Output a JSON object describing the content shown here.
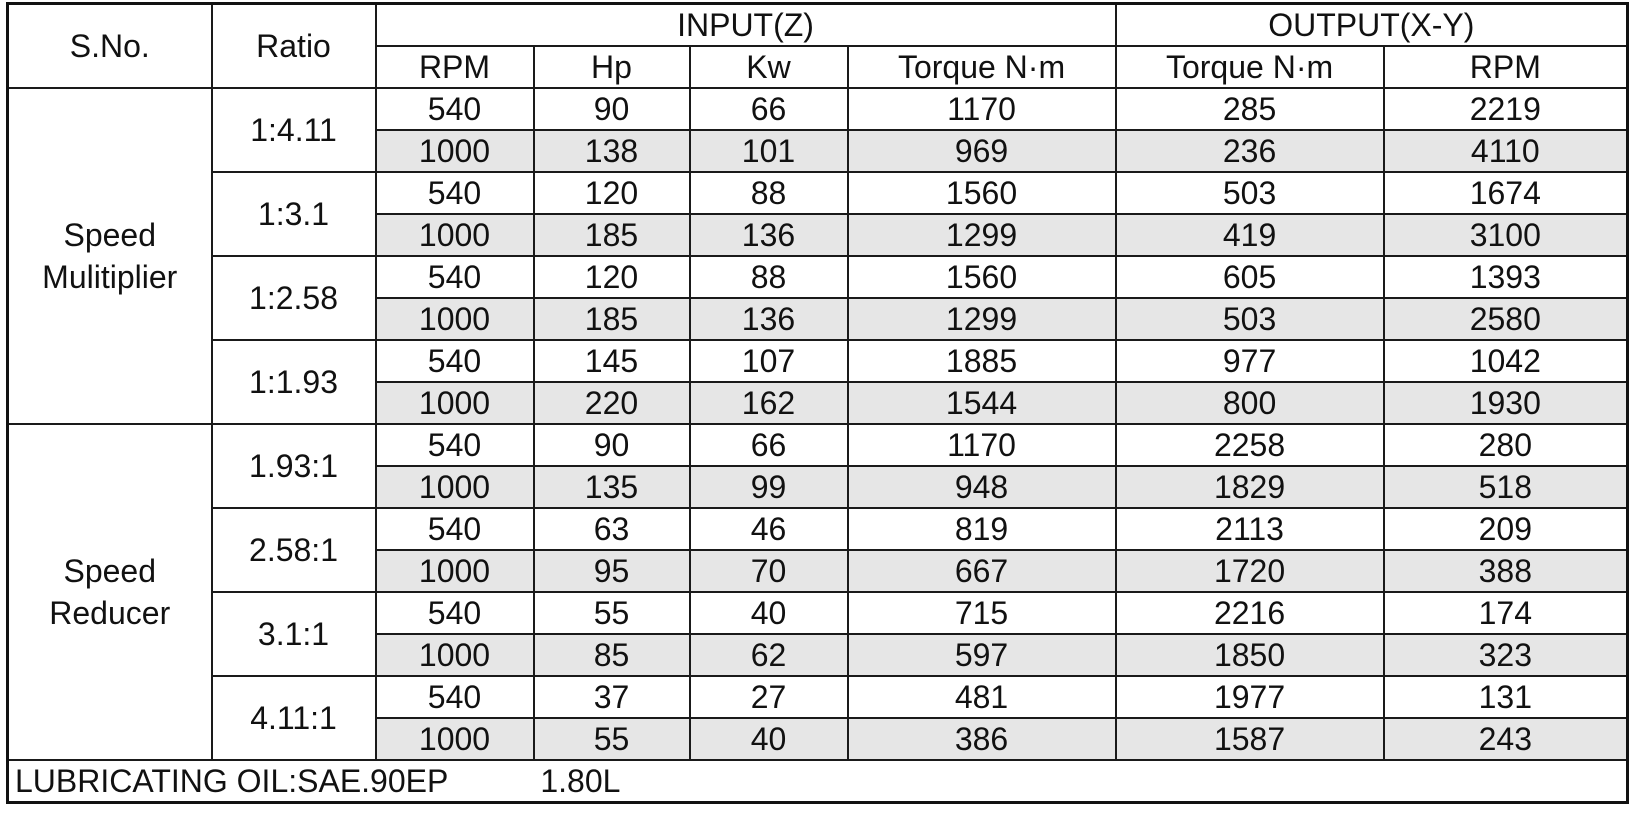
{
  "header": {
    "sno": "S.No.",
    "ratio": "Ratio",
    "input_group": "INPUT(Z)",
    "output_group": "OUTPUT(X-Y)",
    "columns": [
      "RPM",
      "Hp",
      "Kw",
      "Torque N·m",
      "Torque N·m",
      "RPM"
    ]
  },
  "groups": [
    {
      "label_lines": [
        "Speed",
        "Mulitiplier"
      ],
      "ratios": [
        {
          "ratio": "1:4.11",
          "rows": [
            [
              "540",
              "90",
              "66",
              "1170",
              "285",
              "2219"
            ],
            [
              "1000",
              "138",
              "101",
              "969",
              "236",
              "4110"
            ]
          ]
        },
        {
          "ratio": "1:3.1",
          "rows": [
            [
              "540",
              "120",
              "88",
              "1560",
              "503",
              "1674"
            ],
            [
              "1000",
              "185",
              "136",
              "1299",
              "419",
              "3100"
            ]
          ]
        },
        {
          "ratio": "1:2.58",
          "rows": [
            [
              "540",
              "120",
              "88",
              "1560",
              "605",
              "1393"
            ],
            [
              "1000",
              "185",
              "136",
              "1299",
              "503",
              "2580"
            ]
          ]
        },
        {
          "ratio": "1:1.93",
          "rows": [
            [
              "540",
              "145",
              "107",
              "1885",
              "977",
              "1042"
            ],
            [
              "1000",
              "220",
              "162",
              "1544",
              "800",
              "1930"
            ]
          ]
        }
      ]
    },
    {
      "label_lines": [
        "Speed",
        "Reducer"
      ],
      "ratios": [
        {
          "ratio": "1.93:1",
          "rows": [
            [
              "540",
              "90",
              "66",
              "1170",
              "2258",
              "280"
            ],
            [
              "1000",
              "135",
              "99",
              "948",
              "1829",
              "518"
            ]
          ]
        },
        {
          "ratio": "2.58:1",
          "rows": [
            [
              "540",
              "63",
              "46",
              "819",
              "2113",
              "209"
            ],
            [
              "1000",
              "95",
              "70",
              "667",
              "1720",
              "388"
            ]
          ]
        },
        {
          "ratio": "3.1:1",
          "rows": [
            [
              "540",
              "55",
              "40",
              "715",
              "2216",
              "174"
            ],
            [
              "1000",
              "85",
              "62",
              "597",
              "1850",
              "323"
            ]
          ]
        },
        {
          "ratio": "4.11:1",
          "rows": [
            [
              "540",
              "37",
              "27",
              "481",
              "1977",
              "131"
            ],
            [
              "1000",
              "55",
              "40",
              "386",
              "1587",
              "243"
            ]
          ]
        }
      ]
    }
  ],
  "footer": {
    "label": "LUBRICATING OIL:SAE.90EP",
    "quantity": "1.80L"
  },
  "colors": {
    "shaded_row": "#e6e6e6",
    "border": "#1a1a1a"
  }
}
